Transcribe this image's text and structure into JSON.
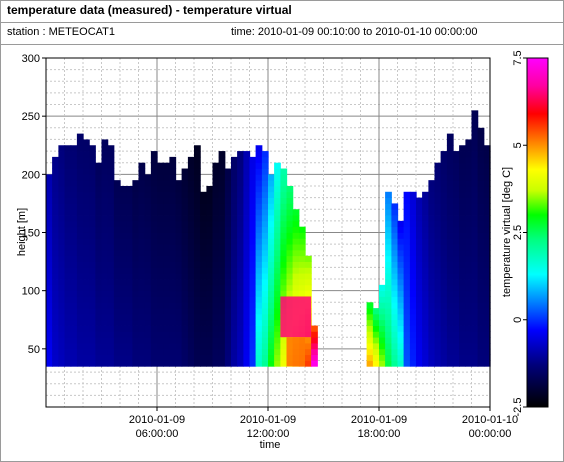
{
  "header": {
    "title": "temperature data (measured) - temperature virtual",
    "station": "station : METEOCAT1",
    "time_range": "time: 2010-01-09 00:10:00 to 2010-01-10 00:00:00"
  },
  "chart_data": {
    "type": "heatmap",
    "xlabel": "time",
    "ylabel": "height [m]",
    "colorbar_label": "temperature virtual [deg C]",
    "x_range_hours": [
      0,
      24
    ],
    "ylim": [
      0,
      300
    ],
    "y_ticks": [
      50,
      100,
      150,
      200,
      250,
      300
    ],
    "x_ticks": [
      {
        "hour": 6,
        "line1": "2010-01-09",
        "line2": "06:00:00"
      },
      {
        "hour": 12,
        "line1": "2010-01-09",
        "line2": "12:00:00"
      },
      {
        "hour": 18,
        "line1": "2010-01-09",
        "line2": "18:00:00"
      },
      {
        "hour": 24,
        "line1": "2010-01-10",
        "line2": "00:00:00"
      }
    ],
    "color_range": [
      -2.5,
      7.5
    ],
    "colorbar_ticks": [
      "7.5",
      "5",
      "2.5",
      "0",
      "-2.5"
    ],
    "grid": true,
    "bottom_height_m": 35,
    "time_step_hours": 0.333,
    "profiles": [
      {
        "hour": 0.0,
        "top": 200,
        "t": -0.6
      },
      {
        "hour": 0.33,
        "top": 215,
        "t": -0.9
      },
      {
        "hour": 0.67,
        "top": 225,
        "t": -1.0
      },
      {
        "hour": 1.0,
        "top": 225,
        "t": -1.1
      },
      {
        "hour": 1.33,
        "top": 225,
        "t": -1.1
      },
      {
        "hour": 1.67,
        "top": 235,
        "t": -1.2
      },
      {
        "hour": 2.0,
        "top": 230,
        "t": -1.2
      },
      {
        "hour": 2.33,
        "top": 225,
        "t": -1.2
      },
      {
        "hour": 2.67,
        "top": 210,
        "t": -1.3
      },
      {
        "hour": 3.0,
        "top": 230,
        "t": -1.3
      },
      {
        "hour": 3.33,
        "top": 225,
        "t": -1.3
      },
      {
        "hour": 3.67,
        "top": 195,
        "t": -1.4
      },
      {
        "hour": 4.0,
        "top": 190,
        "t": -1.4
      },
      {
        "hour": 4.33,
        "top": 190,
        "t": -1.4
      },
      {
        "hour": 4.67,
        "top": 195,
        "t": -1.5
      },
      {
        "hour": 5.0,
        "top": 210,
        "t": -1.5
      },
      {
        "hour": 5.33,
        "top": 200,
        "t": -1.5
      },
      {
        "hour": 5.67,
        "top": 220,
        "t": -1.6
      },
      {
        "hour": 6.0,
        "top": 210,
        "t": -1.6
      },
      {
        "hour": 6.33,
        "top": 210,
        "t": -1.6
      },
      {
        "hour": 6.67,
        "top": 215,
        "t": -1.6
      },
      {
        "hour": 7.0,
        "top": 195,
        "t": -1.6
      },
      {
        "hour": 7.33,
        "top": 205,
        "t": -1.7
      },
      {
        "hour": 7.67,
        "top": 215,
        "t": -1.8
      },
      {
        "hour": 8.0,
        "top": 225,
        "t": -1.9
      },
      {
        "hour": 8.33,
        "top": 185,
        "t": -1.9
      },
      {
        "hour": 8.67,
        "top": 190,
        "t": -1.9
      },
      {
        "hour": 9.0,
        "top": 210,
        "t": -1.8
      },
      {
        "hour": 9.33,
        "top": 220,
        "t": -1.8
      },
      {
        "hour": 9.67,
        "top": 205,
        "t": -1.5
      },
      {
        "hour": 10.0,
        "top": 215,
        "t": -1.2
      },
      {
        "hour": 10.33,
        "top": 220,
        "t": -1.0
      },
      {
        "hour": 10.67,
        "top": 220,
        "t": -0.6
      },
      {
        "hour": 11.0,
        "top": 215,
        "t": -0.2
      },
      {
        "hour": 11.33,
        "top": 225,
        "t": 0.4
      },
      {
        "hour": 11.67,
        "top": 220,
        "t": 0.8
      },
      {
        "hour": 12.0,
        "top": 200,
        "t": 1.6
      },
      {
        "hour": 12.33,
        "top": 210,
        "t": 2.2
      },
      {
        "hour": 12.67,
        "top": 205,
        "t": 2.8
      },
      {
        "hour": 13.0,
        "top": 190,
        "t": 3.2
      },
      {
        "hour": 13.33,
        "top": 170,
        "t": 3.6
      },
      {
        "hour": 13.67,
        "top": 155,
        "t": 3.8
      },
      {
        "hour": 14.0,
        "top": 130,
        "t": 4.2
      },
      {
        "hour": 14.33,
        "top": 70,
        "t": 6.0
      },
      {
        "hour": 17.33,
        "top": 90,
        "t": 3.5
      },
      {
        "hour": 17.67,
        "top": 85,
        "t": 3.0
      },
      {
        "hour": 18.0,
        "top": 105,
        "t": 2.2
      },
      {
        "hour": 18.33,
        "top": 185,
        "t": 1.3
      },
      {
        "hour": 18.67,
        "top": 175,
        "t": 0.8
      },
      {
        "hour": 19.0,
        "top": 160,
        "t": 0.4
      },
      {
        "hour": 19.33,
        "top": 185,
        "t": 0.0
      },
      {
        "hour": 19.67,
        "top": 185,
        "t": -0.3
      },
      {
        "hour": 20.0,
        "top": 180,
        "t": -0.6
      },
      {
        "hour": 20.33,
        "top": 185,
        "t": -0.8
      },
      {
        "hour": 20.67,
        "top": 195,
        "t": -1.0
      },
      {
        "hour": 21.0,
        "top": 210,
        "t": -1.1
      },
      {
        "hour": 21.33,
        "top": 220,
        "t": -1.2
      },
      {
        "hour": 21.67,
        "top": 235,
        "t": -1.3
      },
      {
        "hour": 22.0,
        "top": 220,
        "t": -1.3
      },
      {
        "hour": 22.33,
        "top": 225,
        "t": -1.4
      },
      {
        "hour": 22.67,
        "top": 230,
        "t": -1.4
      },
      {
        "hour": 23.0,
        "top": 255,
        "t": -1.4
      },
      {
        "hour": 23.33,
        "top": 240,
        "t": -1.5
      },
      {
        "hour": 23.67,
        "top": 225,
        "t": -1.5
      }
    ],
    "hotspots": [
      {
        "h0": 12.67,
        "h1": 14.33,
        "z0": 60,
        "z1": 95,
        "t": 6.5
      },
      {
        "h0": 13.0,
        "h1": 14.0,
        "z0": 35,
        "z1": 60,
        "t": 5.2
      }
    ]
  }
}
